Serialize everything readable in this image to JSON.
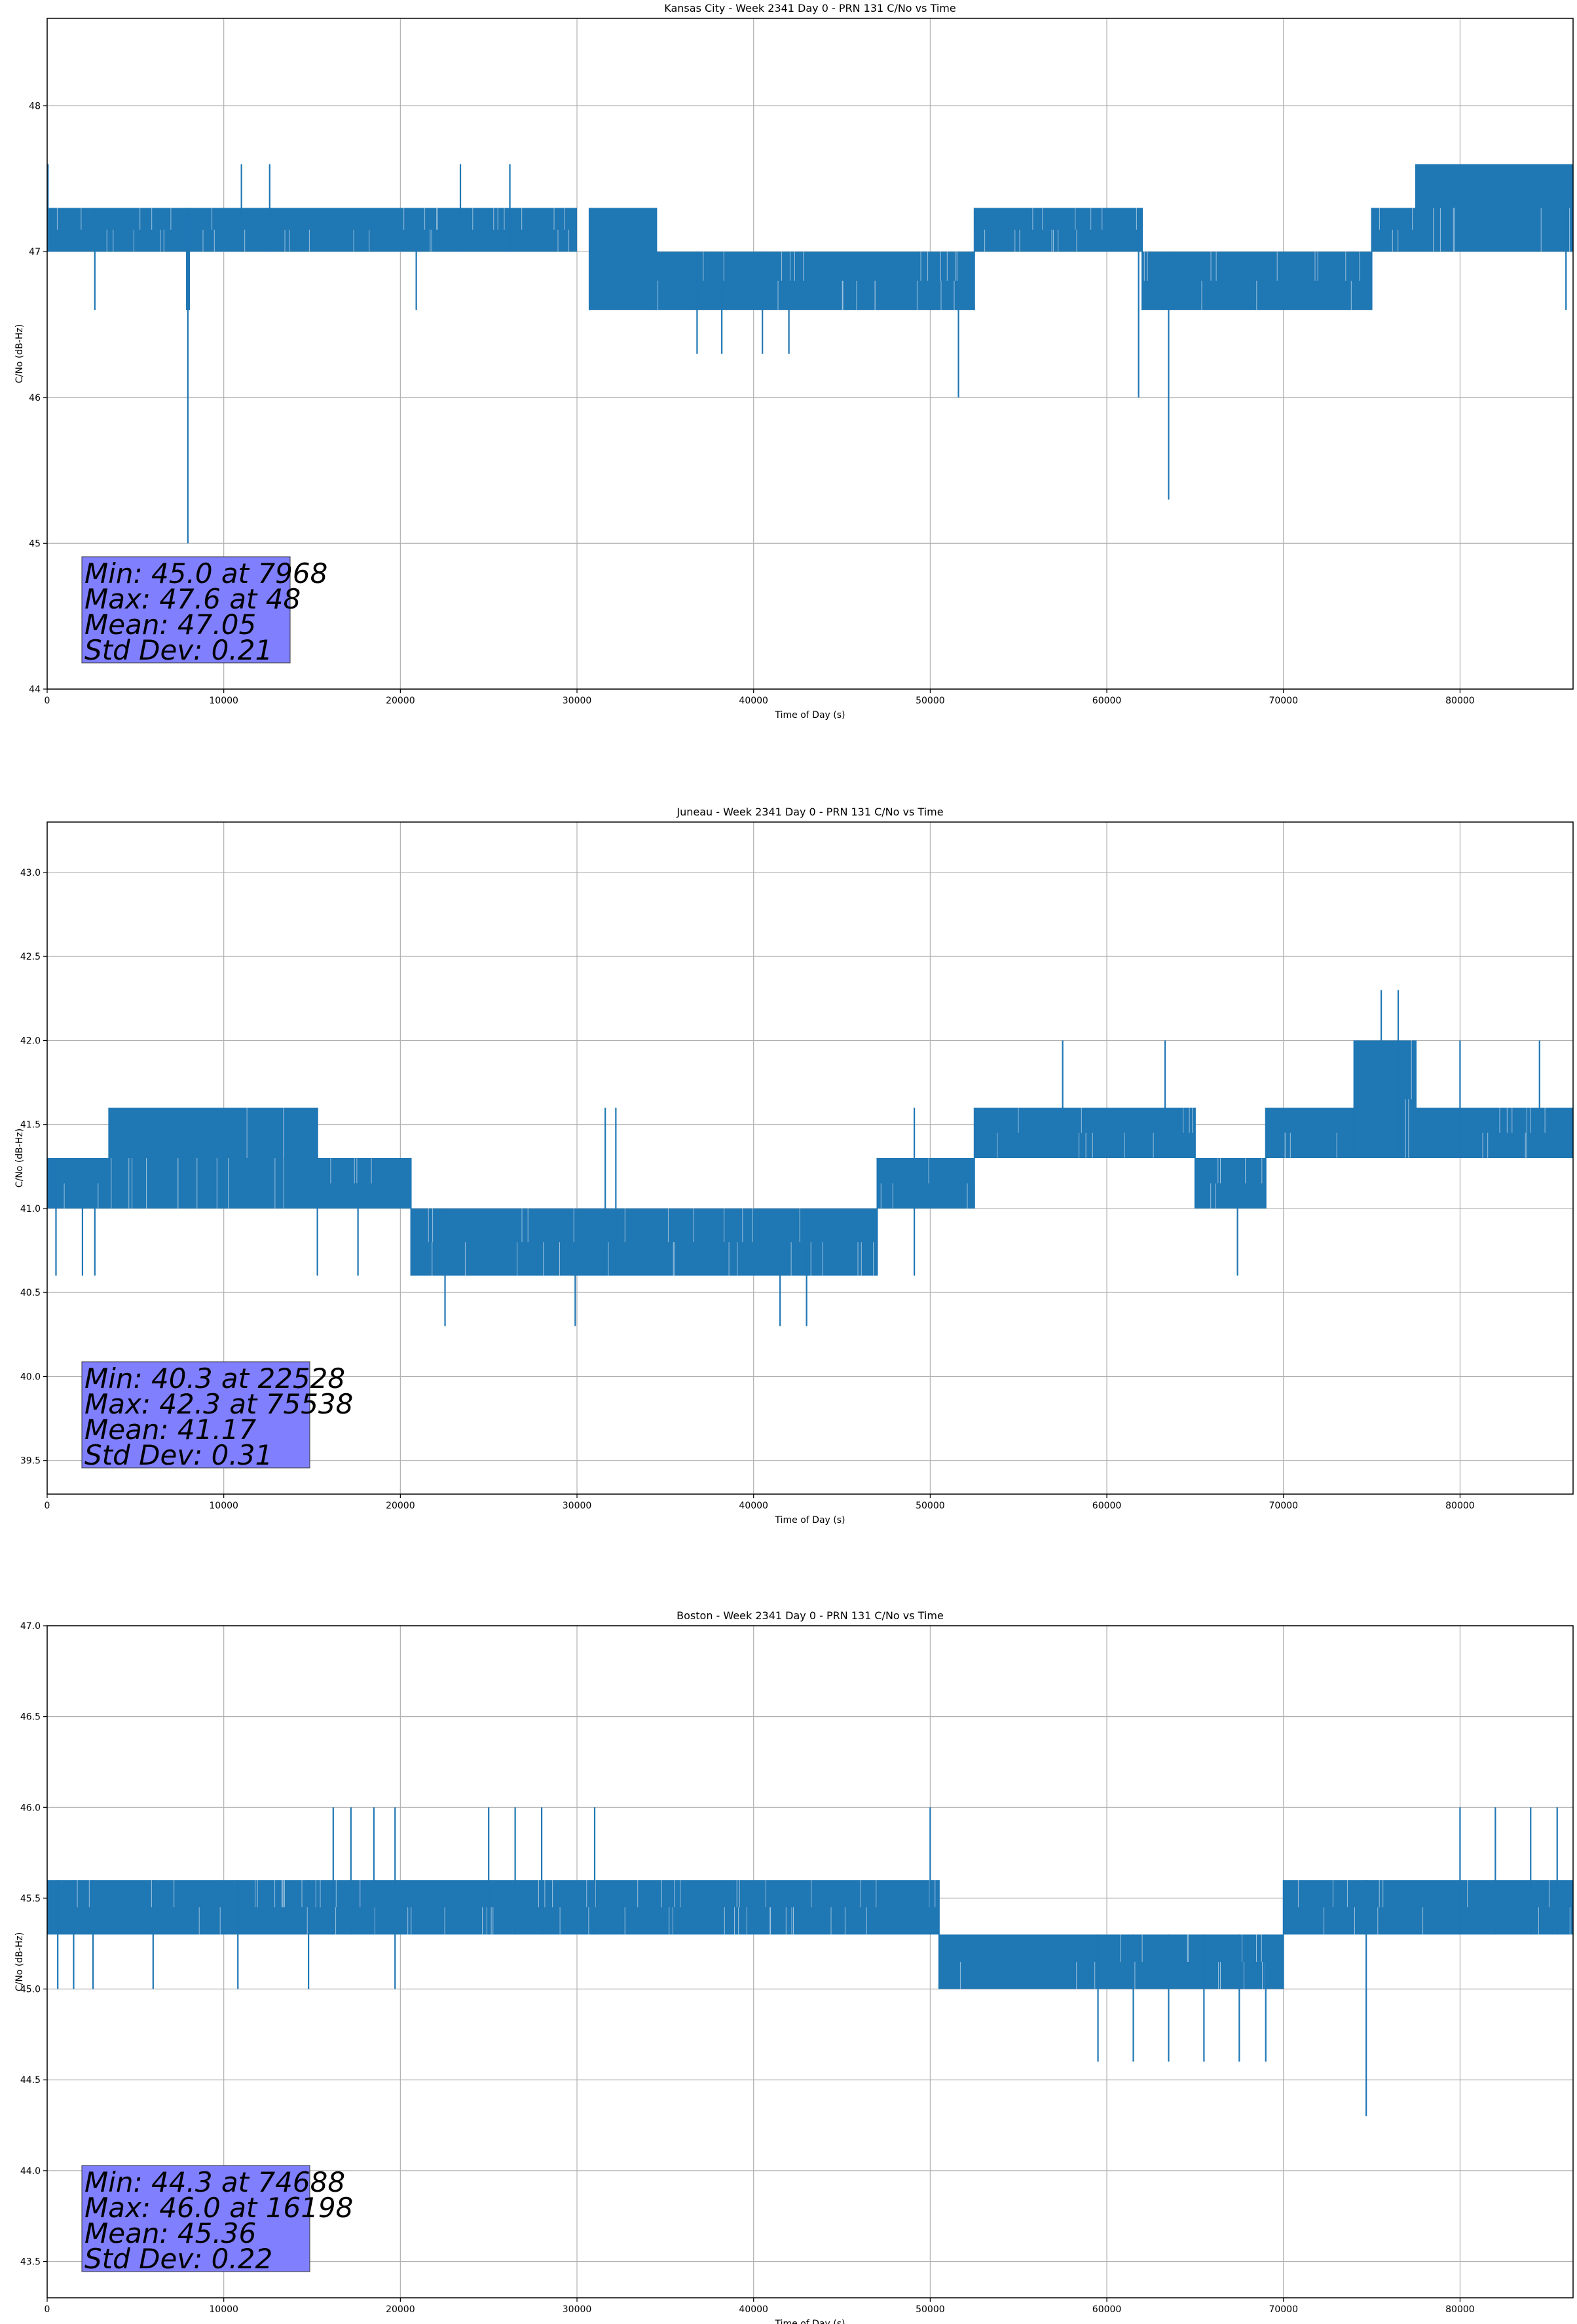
{
  "chart_data": [
    {
      "type": "line",
      "title": "Kansas City - Week 2341 Day 0 - PRN 131 C/No vs Time",
      "xlabel": "Time of Day (s)",
      "ylabel": "C/No (dB-Hz)",
      "xlim": [
        0,
        86400
      ],
      "ylim": [
        44,
        48.6
      ],
      "xticks": [
        0,
        10000,
        20000,
        30000,
        40000,
        50000,
        60000,
        70000,
        80000
      ],
      "xtick_labels": [
        "0",
        "10000",
        "20000",
        "30000",
        "40000",
        "50000",
        "60000",
        "70000",
        "80000"
      ],
      "yticks": [
        44,
        45,
        46,
        47,
        48
      ],
      "ytick_labels": [
        "44",
        "45",
        "46",
        "47",
        "48"
      ],
      "grid": true,
      "line_color": "#1f77b4",
      "stats_box_color": "#8080ff",
      "segments": [
        {
          "x": [
            0,
            7900
          ],
          "lo": 47.0,
          "hi": 47.3
        },
        {
          "x": [
            7900,
            8050
          ],
          "lo": 46.6,
          "hi": 47.3
        },
        {
          "x": [
            8050,
            30000
          ],
          "lo": 47.0,
          "hi": 47.3
        },
        {
          "x": [
            30700,
            34500
          ],
          "lo": 46.6,
          "hi": 47.3
        },
        {
          "x": [
            34500,
            52500
          ],
          "lo": 46.6,
          "hi": 47.0
        },
        {
          "x": [
            52500,
            62000
          ],
          "lo": 47.0,
          "hi": 47.3
        },
        {
          "x": [
            62000,
            75000
          ],
          "lo": 46.6,
          "hi": 47.0
        },
        {
          "x": [
            75000,
            77500
          ],
          "lo": 47.0,
          "hi": 47.3
        },
        {
          "x": [
            77500,
            86400
          ],
          "lo": 47.0,
          "hi": 47.6
        }
      ],
      "spikes": [
        {
          "x": 48,
          "lo": 47.0,
          "hi": 47.6
        },
        {
          "x": 2700,
          "lo": 46.6,
          "hi": 47.3
        },
        {
          "x": 7968,
          "lo": 45.0,
          "hi": 47.3
        },
        {
          "x": 11000,
          "lo": 47.0,
          "hi": 47.6
        },
        {
          "x": 12600,
          "lo": 47.0,
          "hi": 47.6
        },
        {
          "x": 20900,
          "lo": 46.6,
          "hi": 47.3
        },
        {
          "x": 23400,
          "lo": 47.0,
          "hi": 47.6
        },
        {
          "x": 26200,
          "lo": 47.0,
          "hi": 47.6
        },
        {
          "x": 36800,
          "lo": 46.3,
          "hi": 47.0
        },
        {
          "x": 38200,
          "lo": 46.3,
          "hi": 47.0
        },
        {
          "x": 40500,
          "lo": 46.3,
          "hi": 47.0
        },
        {
          "x": 42000,
          "lo": 46.3,
          "hi": 47.0
        },
        {
          "x": 51600,
          "lo": 46.0,
          "hi": 47.0
        },
        {
          "x": 61800,
          "lo": 46.0,
          "hi": 47.0
        },
        {
          "x": 63500,
          "lo": 45.3,
          "hi": 47.0
        },
        {
          "x": 86000,
          "lo": 46.6,
          "hi": 47.3
        }
      ],
      "stats": [
        "Min: 45.0 at 7968",
        "Max: 47.6 at 48",
        "Mean: 47.05",
        "Std Dev: 0.21"
      ]
    },
    {
      "type": "line",
      "title": "Juneau - Week 2341 Day 0 - PRN 131 C/No vs Time",
      "xlabel": "Time of Day (s)",
      "ylabel": "C/No (dB-Hz)",
      "xlim": [
        0,
        86400
      ],
      "ylim": [
        39.3,
        43.3
      ],
      "xticks": [
        0,
        10000,
        20000,
        30000,
        40000,
        50000,
        60000,
        70000,
        80000
      ],
      "xtick_labels": [
        "0",
        "10000",
        "20000",
        "30000",
        "40000",
        "50000",
        "60000",
        "70000",
        "80000"
      ],
      "yticks": [
        39.5,
        40.0,
        40.5,
        41.0,
        41.5,
        42.0,
        42.5,
        43.0
      ],
      "ytick_labels": [
        "39.5",
        "40.0",
        "40.5",
        "41.0",
        "41.5",
        "42.0",
        "42.5",
        "43.0"
      ],
      "grid": true,
      "line_color": "#1f77b4",
      "stats_box_color": "#8080ff",
      "segments": [
        {
          "x": [
            0,
            3500
          ],
          "lo": 41.0,
          "hi": 41.3
        },
        {
          "x": [
            3500,
            15300
          ],
          "lo": 41.0,
          "hi": 41.6
        },
        {
          "x": [
            15300,
            20600
          ],
          "lo": 41.0,
          "hi": 41.3
        },
        {
          "x": [
            20600,
            47000
          ],
          "lo": 40.6,
          "hi": 41.0
        },
        {
          "x": [
            47000,
            52500
          ],
          "lo": 41.0,
          "hi": 41.3
        },
        {
          "x": [
            52500,
            65000
          ],
          "lo": 41.3,
          "hi": 41.6
        },
        {
          "x": [
            65000,
            69000
          ],
          "lo": 41.0,
          "hi": 41.3
        },
        {
          "x": [
            69000,
            74000
          ],
          "lo": 41.3,
          "hi": 41.6
        },
        {
          "x": [
            74000,
            77500
          ],
          "lo": 41.3,
          "hi": 42.0
        },
        {
          "x": [
            77500,
            86400
          ],
          "lo": 41.3,
          "hi": 41.6
        }
      ],
      "spikes": [
        {
          "x": 500,
          "lo": 40.6,
          "hi": 41.3
        },
        {
          "x": 2000,
          "lo": 40.6,
          "hi": 41.3
        },
        {
          "x": 2700,
          "lo": 40.6,
          "hi": 41.3
        },
        {
          "x": 15300,
          "lo": 40.6,
          "hi": 41.6
        },
        {
          "x": 17600,
          "lo": 40.6,
          "hi": 41.3
        },
        {
          "x": 22528,
          "lo": 40.3,
          "hi": 41.0
        },
        {
          "x": 29900,
          "lo": 40.3,
          "hi": 41.0
        },
        {
          "x": 31600,
          "lo": 40.6,
          "hi": 41.6
        },
        {
          "x": 32200,
          "lo": 40.6,
          "hi": 41.6
        },
        {
          "x": 41500,
          "lo": 40.3,
          "hi": 41.0
        },
        {
          "x": 43000,
          "lo": 40.3,
          "hi": 41.0
        },
        {
          "x": 49100,
          "lo": 40.6,
          "hi": 41.6
        },
        {
          "x": 57500,
          "lo": 41.3,
          "hi": 42.0
        },
        {
          "x": 63300,
          "lo": 41.3,
          "hi": 42.0
        },
        {
          "x": 67400,
          "lo": 40.6,
          "hi": 41.3
        },
        {
          "x": 75538,
          "lo": 41.3,
          "hi": 42.3
        },
        {
          "x": 76500,
          "lo": 41.3,
          "hi": 42.3
        },
        {
          "x": 80000,
          "lo": 41.3,
          "hi": 42.0
        },
        {
          "x": 84500,
          "lo": 41.3,
          "hi": 42.0
        }
      ],
      "stats": [
        "Min: 40.3 at 22528",
        "Max: 42.3 at 75538",
        "Mean: 41.17",
        "Std Dev: 0.31"
      ]
    },
    {
      "type": "line",
      "title": "Boston - Week 2341 Day 0 - PRN 131 C/No vs Time",
      "xlabel": "Time of Day (s)",
      "ylabel": "C/No (dB-Hz)",
      "xlim": [
        0,
        86400
      ],
      "ylim": [
        43.3,
        47.0
      ],
      "xticks": [
        0,
        10000,
        20000,
        30000,
        40000,
        50000,
        60000,
        70000,
        80000
      ],
      "xtick_labels": [
        "0",
        "10000",
        "20000",
        "30000",
        "40000",
        "50000",
        "60000",
        "70000",
        "80000"
      ],
      "yticks": [
        43.5,
        44.0,
        44.5,
        45.0,
        45.5,
        46.0,
        46.5,
        47.0
      ],
      "ytick_labels": [
        "43.5",
        "44.0",
        "44.5",
        "45.0",
        "45.5",
        "46.0",
        "46.5",
        "47.0"
      ],
      "grid": true,
      "line_color": "#1f77b4",
      "stats_box_color": "#8080ff",
      "segments": [
        {
          "x": [
            0,
            50500
          ],
          "lo": 45.3,
          "hi": 45.6
        },
        {
          "x": [
            50500,
            70000
          ],
          "lo": 45.0,
          "hi": 45.3
        },
        {
          "x": [
            70000,
            86400
          ],
          "lo": 45.3,
          "hi": 45.6
        }
      ],
      "spikes": [
        {
          "x": 600,
          "lo": 45.0,
          "hi": 45.6
        },
        {
          "x": 1500,
          "lo": 45.0,
          "hi": 45.6
        },
        {
          "x": 2600,
          "lo": 45.0,
          "hi": 45.6
        },
        {
          "x": 6000,
          "lo": 45.0,
          "hi": 45.6
        },
        {
          "x": 10800,
          "lo": 45.0,
          "hi": 45.6
        },
        {
          "x": 14800,
          "lo": 45.0,
          "hi": 45.6
        },
        {
          "x": 16198,
          "lo": 45.3,
          "hi": 46.0
        },
        {
          "x": 17200,
          "lo": 45.3,
          "hi": 46.0
        },
        {
          "x": 18500,
          "lo": 45.3,
          "hi": 46.0
        },
        {
          "x": 19700,
          "lo": 45.0,
          "hi": 46.0
        },
        {
          "x": 25000,
          "lo": 45.3,
          "hi": 46.0
        },
        {
          "x": 26500,
          "lo": 45.3,
          "hi": 46.0
        },
        {
          "x": 28000,
          "lo": 45.3,
          "hi": 46.0
        },
        {
          "x": 31000,
          "lo": 45.3,
          "hi": 46.0
        },
        {
          "x": 50000,
          "lo": 45.3,
          "hi": 46.0
        },
        {
          "x": 59500,
          "lo": 44.6,
          "hi": 45.3
        },
        {
          "x": 61500,
          "lo": 44.6,
          "hi": 45.3
        },
        {
          "x": 63500,
          "lo": 44.6,
          "hi": 45.3
        },
        {
          "x": 65500,
          "lo": 44.6,
          "hi": 45.3
        },
        {
          "x": 67500,
          "lo": 44.6,
          "hi": 45.3
        },
        {
          "x": 69000,
          "lo": 44.6,
          "hi": 45.3
        },
        {
          "x": 74688,
          "lo": 44.3,
          "hi": 45.6
        },
        {
          "x": 80000,
          "lo": 45.3,
          "hi": 46.0
        },
        {
          "x": 82000,
          "lo": 45.3,
          "hi": 46.0
        },
        {
          "x": 84000,
          "lo": 45.3,
          "hi": 46.0
        },
        {
          "x": 85500,
          "lo": 45.3,
          "hi": 46.0
        }
      ],
      "stats": [
        "Min: 44.3 at 74688",
        "Max: 46.0 at 16198",
        "Mean: 45.36",
        "Std Dev: 0.22"
      ]
    }
  ]
}
